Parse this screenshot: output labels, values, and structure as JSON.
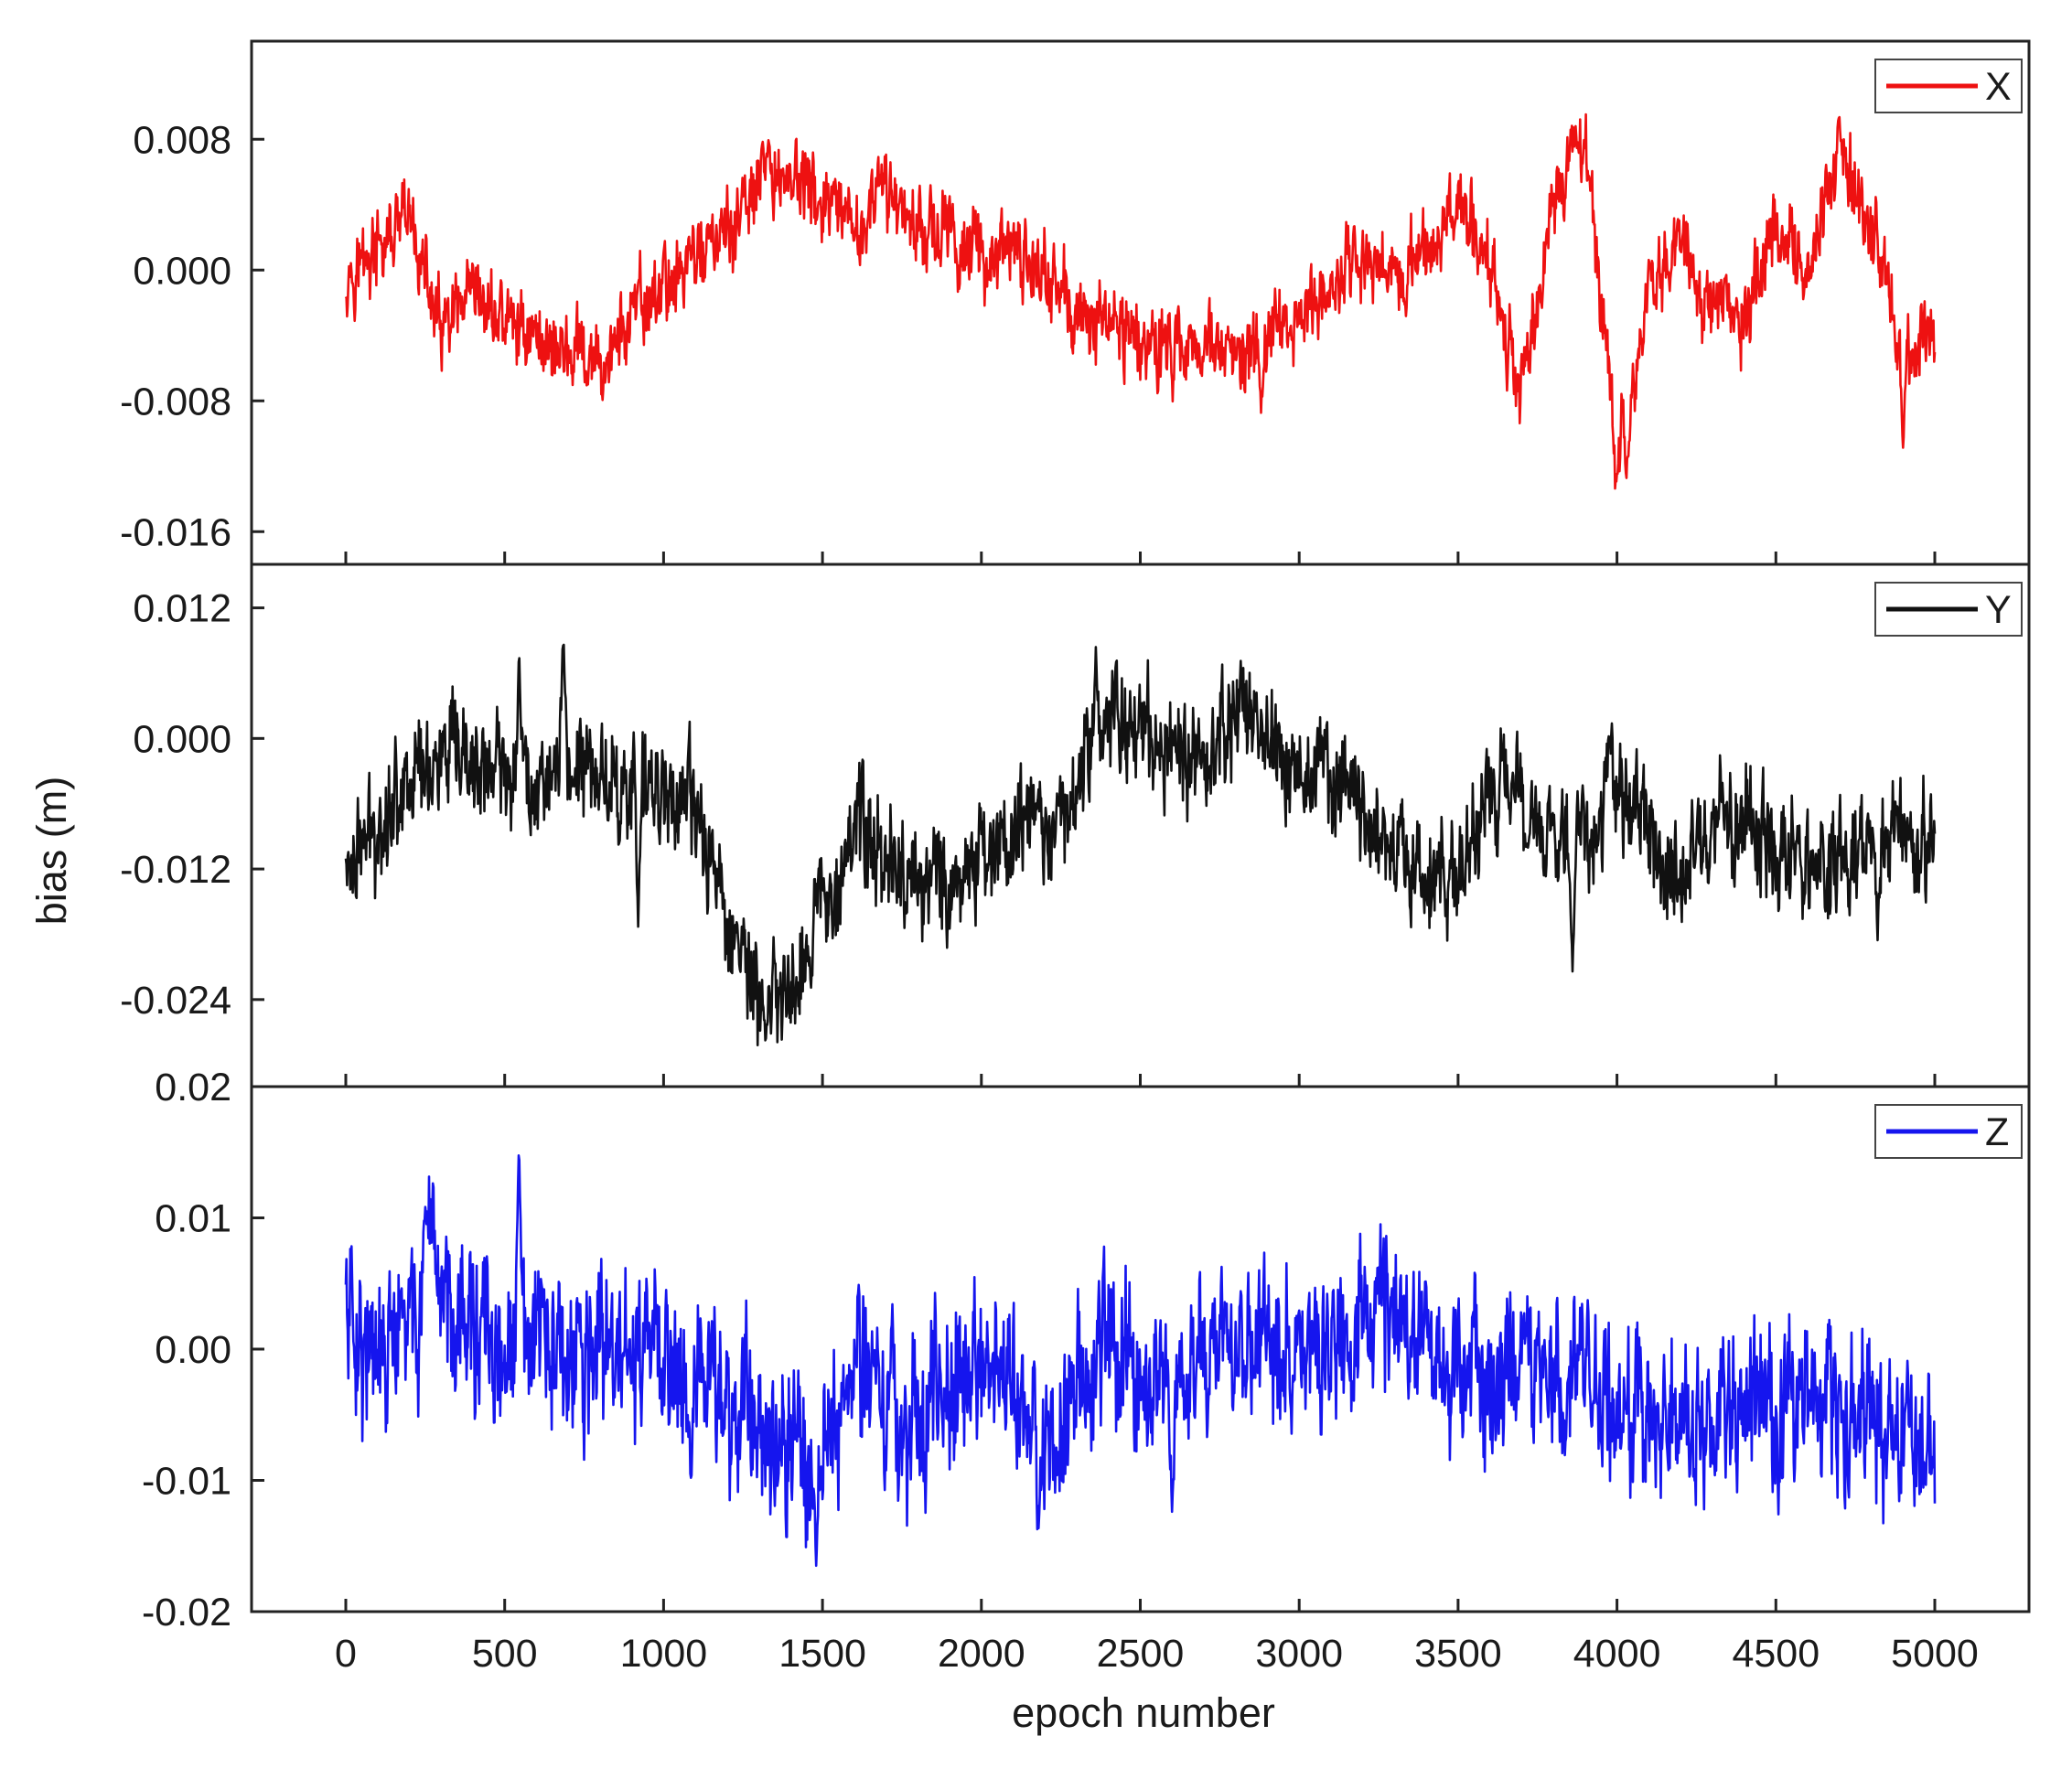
{
  "chart_data": {
    "type": "line",
    "xlabel": "epoch number",
    "ylabel": "bias (m)",
    "xlim": [
      0,
      5000
    ],
    "x_ticks": [
      "0",
      "500",
      "1000",
      "1500",
      "2000",
      "2500",
      "3000",
      "3500",
      "4000",
      "4500",
      "5000"
    ],
    "x": [
      0,
      100,
      200,
      300,
      400,
      500,
      600,
      700,
      800,
      900,
      1000,
      1100,
      1200,
      1300,
      1400,
      1500,
      1600,
      1700,
      1800,
      1900,
      2000,
      2100,
      2200,
      2300,
      2400,
      2500,
      2600,
      2700,
      2800,
      2900,
      3000,
      3100,
      3200,
      3300,
      3400,
      3500,
      3600,
      3700,
      3800,
      3900,
      4000,
      4100,
      4200,
      4300,
      4400,
      4500,
      4600,
      4700,
      4800,
      4900,
      5000
    ],
    "grid": false,
    "legend_position": "top-right",
    "panels": [
      {
        "series_name": "X",
        "color": "#ee1111",
        "ylim": [
          -0.018,
          0.014
        ],
        "y_ticks": [
          "0.008",
          "0.000",
          "-0.008",
          "-0.016"
        ],
        "y_tick_values": [
          0.008,
          0.0,
          -0.008,
          -0.016
        ],
        "values": [
          0.0,
          0.001,
          0.003,
          -0.004,
          -0.002,
          -0.003,
          -0.004,
          -0.005,
          -0.006,
          -0.003,
          -0.001,
          0.001,
          0.002,
          0.005,
          0.006,
          0.004,
          0.002,
          0.005,
          0.003,
          0.002,
          0.001,
          0.001,
          0.0,
          -0.003,
          -0.003,
          -0.004,
          -0.005,
          -0.004,
          -0.006,
          -0.004,
          -0.003,
          -0.001,
          0.001,
          0.0,
          0.001,
          0.004,
          0.001,
          -0.008,
          0.004,
          0.008,
          -0.012,
          -0.001,
          0.002,
          -0.003,
          -0.003,
          0.003,
          0.0,
          0.007,
          0.003,
          -0.006,
          -0.004
        ],
        "noise": 0.0022,
        "spikes": [
          [
            3870,
            0.009
          ],
          [
            4030,
            -0.013
          ],
          [
            4700,
            0.0095
          ],
          [
            4900,
            -0.011
          ],
          [
            2880,
            -0.009
          ],
          [
            1330,
            0.008
          ],
          [
            760,
            -0.007
          ]
        ]
      },
      {
        "series_name": "Y",
        "color": "#111111",
        "ylim": [
          -0.032,
          0.016
        ],
        "y_ticks": [
          "0.012",
          "0.000",
          "-0.012",
          "-0.024"
        ],
        "y_tick_values": [
          0.012,
          0.0,
          -0.012,
          -0.024
        ],
        "values": [
          -0.012,
          -0.008,
          -0.003,
          -0.002,
          -0.003,
          -0.003,
          -0.004,
          -0.002,
          -0.003,
          -0.005,
          -0.004,
          -0.007,
          -0.016,
          -0.024,
          -0.023,
          -0.015,
          -0.008,
          -0.011,
          -0.013,
          -0.013,
          -0.011,
          -0.009,
          -0.008,
          -0.004,
          0.002,
          0.002,
          -0.001,
          -0.002,
          0.002,
          0.001,
          -0.003,
          -0.004,
          -0.007,
          -0.012,
          -0.013,
          -0.014,
          -0.005,
          -0.004,
          -0.009,
          -0.008,
          -0.004,
          -0.009,
          -0.013,
          -0.007,
          -0.008,
          -0.01,
          -0.012,
          -0.011,
          -0.01,
          -0.008,
          -0.009
        ],
        "noise": 0.0045,
        "spikes": [
          [
            685,
            0.01
          ],
          [
            545,
            0.009
          ],
          [
            1320,
            -0.028
          ],
          [
            2360,
            0.009
          ],
          [
            3860,
            -0.022
          ],
          [
            4820,
            -0.019
          ],
          [
            920,
            -0.018
          ]
        ]
      },
      {
        "series_name": "Z",
        "color": "#1515ee",
        "ylim": [
          -0.02,
          0.02
        ],
        "y_ticks": [
          "0.02",
          "0.01",
          "0.00",
          "-0.01",
          "-0.02"
        ],
        "y_tick_values": [
          0.02,
          0.01,
          0.0,
          -0.01,
          -0.02
        ],
        "values": [
          0.004,
          -0.002,
          0.002,
          0.005,
          0.002,
          -0.002,
          0.001,
          -0.002,
          0.0,
          -0.001,
          0.0,
          -0.003,
          -0.004,
          -0.005,
          -0.007,
          -0.008,
          0.0,
          -0.004,
          -0.006,
          -0.002,
          -0.001,
          -0.003,
          -0.008,
          -0.003,
          0.002,
          -0.001,
          -0.003,
          0.001,
          -0.001,
          0.0,
          -0.001,
          0.001,
          0.002,
          0.003,
          0.001,
          -0.002,
          -0.003,
          -0.001,
          -0.002,
          -0.003,
          -0.004,
          -0.004,
          -0.006,
          -0.004,
          -0.003,
          -0.005,
          -0.004,
          -0.005,
          -0.006,
          -0.006,
          -0.007
        ],
        "noise": 0.0055,
        "spikes": [
          [
            545,
            0.017
          ],
          [
            1480,
            -0.017
          ],
          [
            2180,
            -0.014
          ],
          [
            2600,
            -0.013
          ],
          [
            250,
            0.011
          ],
          [
            4970,
            -0.01
          ]
        ]
      }
    ]
  }
}
